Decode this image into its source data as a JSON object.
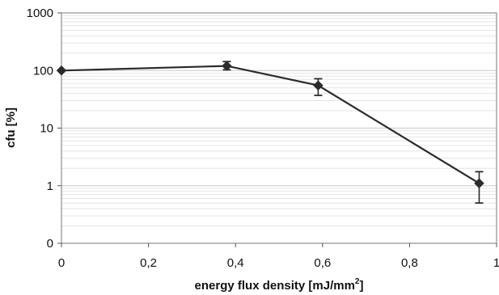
{
  "chart_data": {
    "type": "line",
    "title": "",
    "xlabel": "energy flux density [mJ/mm",
    "xlabel_superscript": "2",
    "xlabel_suffix": "]",
    "ylabel": "cfu [%]",
    "x_scale": "linear",
    "y_scale": "log",
    "xlim": [
      0,
      1
    ],
    "ylim": [
      0.1,
      1000
    ],
    "x_ticks": [
      0,
      0.2,
      0.4,
      0.6,
      0.8,
      1
    ],
    "x_tick_labels": [
      "0",
      "0,2",
      "0,4",
      "0,6",
      "0,8",
      "1"
    ],
    "y_ticks": [
      0.1,
      1,
      10,
      100,
      1000
    ],
    "y_tick_labels": [
      "0",
      "1",
      "10",
      "100",
      "1000"
    ],
    "grid": "horizontal minor lines on log scale",
    "legend": "none",
    "series": [
      {
        "marker": "diamond",
        "color": "#2b2b2b",
        "x": [
          0,
          0.38,
          0.59,
          0.96
        ],
        "y": [
          100,
          120,
          55,
          1.1
        ],
        "error_low": [
          100,
          103,
          37,
          0.5
        ],
        "error_high": [
          100,
          143,
          72,
          1.75
        ]
      }
    ]
  }
}
